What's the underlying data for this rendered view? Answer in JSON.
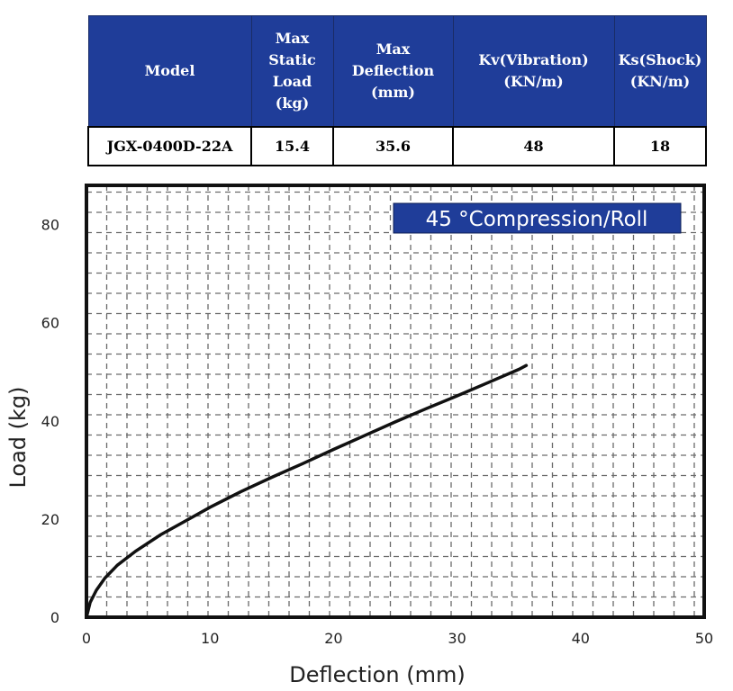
{
  "spec_table": {
    "headers": [
      "Model",
      "Max\nStatic\nLoad\n(kg)",
      "Max\nDeflection\n(mm)",
      "Kv(Vibration)\n(KN/m)",
      "Ks(Shock)\n(KN/m)"
    ],
    "row": [
      "JGX-0400D-22A",
      "15.4",
      "35.6",
      "48",
      "18"
    ],
    "header_bg": "#1f3d99"
  },
  "chart_data": {
    "type": "line",
    "xlabel": "Deflection (mm)",
    "ylabel": "Load (kg)",
    "xlim": [
      0,
      50
    ],
    "ylim": [
      0,
      88
    ],
    "x_ticks": [
      0,
      10,
      20,
      30,
      40,
      50
    ],
    "y_ticks": [
      0,
      20,
      40,
      60,
      80
    ],
    "grid": true,
    "legend": {
      "text": "45 °Compression/Roll",
      "placement": "top-right",
      "bg": "#1f3d99"
    },
    "series": [
      {
        "x": [
          0,
          0.3,
          0.8,
          1.5,
          2.5,
          4,
          6,
          8,
          10,
          12.5,
          15,
          17.5,
          20,
          22.5,
          25,
          27.5,
          30,
          32.5,
          35,
          35.6
        ],
        "y": [
          0,
          3,
          5.5,
          8,
          10.6,
          13.5,
          16.8,
          19.6,
          22.4,
          25.6,
          28.5,
          31.3,
          34.2,
          37,
          39.8,
          42.5,
          45.1,
          47.8,
          50.5,
          51.3
        ],
        "color": "#111111"
      }
    ]
  }
}
